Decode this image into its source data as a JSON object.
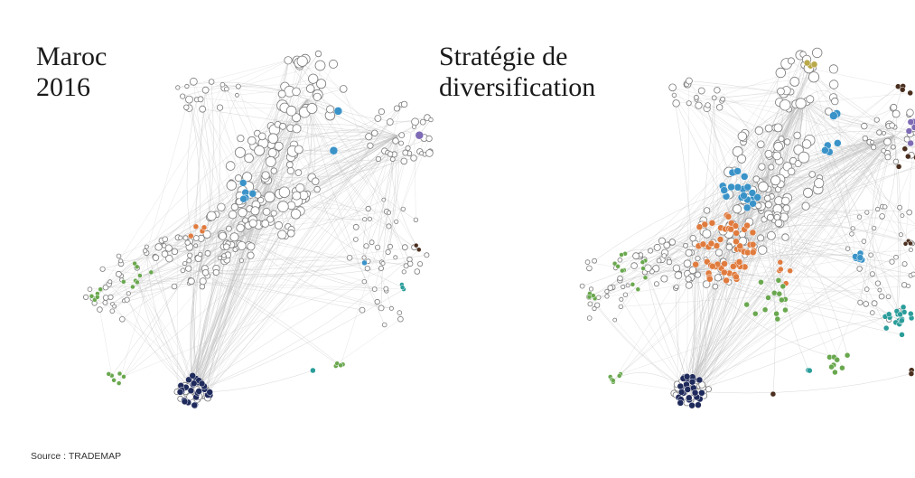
{
  "panels": [
    {
      "title_line1": "Maroc",
      "title_line2": "2016"
    },
    {
      "title_line1": "Stratégie de",
      "title_line2": "diversification"
    }
  ],
  "source": "Source : TRADEMAP",
  "colors": {
    "edge": "#bdbdbd",
    "node_fill": "#ffffff",
    "node_stroke": "#7a7a7a",
    "blue": "#3a93c8",
    "orange": "#e07b3e",
    "green": "#6aa84f",
    "navy": "#1f2a5c",
    "purple": "#7e6bb5",
    "teal": "#2a9d9a",
    "brown": "#4a2e1e",
    "olive": "#b9a94a",
    "gray": "#777777"
  }
}
